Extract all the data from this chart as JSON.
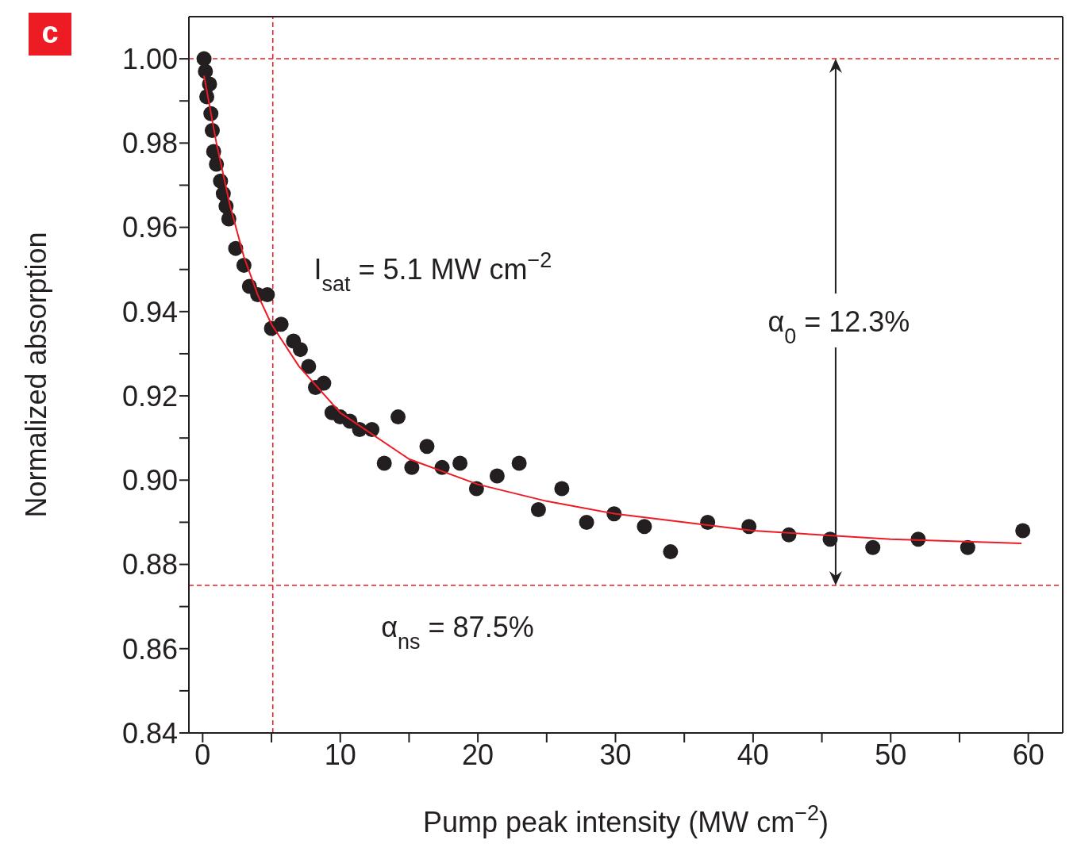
{
  "chart_data": {
    "type": "scatter",
    "xlabel": "Pump peak intensity (MW cm$^{−2}$)",
    "ylabel": "Normalized absorption",
    "xlim": [
      -1,
      62.5
    ],
    "ylim": [
      0.84,
      1.01
    ],
    "xticks": [
      0,
      {
        "value": 5,
        "label": null
      },
      10,
      {
        "value": 15,
        "label": null
      },
      20,
      {
        "value": 25,
        "label": null
      },
      30,
      {
        "value": 35,
        "label": null
      },
      40,
      {
        "value": 45,
        "label": null
      },
      50,
      {
        "value": 55,
        "label": null
      },
      60
    ],
    "yticks": [
      0.84,
      {
        "value": 0.85,
        "label": null
      },
      0.86,
      {
        "value": 0.87,
        "label": null
      },
      0.88,
      {
        "value": 0.89,
        "label": null
      },
      {
        "value": 0.9,
        "label": "0.90"
      },
      {
        "value": 0.91,
        "label": null
      },
      0.92,
      {
        "value": 0.93,
        "label": null
      },
      0.94,
      {
        "value": 0.95,
        "label": null
      },
      0.96,
      {
        "value": 0.97,
        "label": null
      },
      0.98,
      {
        "value": 0.99,
        "label": null
      },
      {
        "value": 1,
        "label": "1.00"
      }
    ],
    "marker": "circle",
    "series": [
      {
        "color": "#231f20",
        "x": [
          0.1,
          0.2,
          0.5,
          0.3,
          0.6,
          0.7,
          0.8,
          1.0,
          1.3,
          1.5,
          1.7,
          1.9,
          2.4,
          3.0,
          3.4,
          4.0,
          4.7,
          5.0,
          5.7,
          6.6,
          7.1,
          7.7,
          8.2,
          8.8,
          9.4,
          10.0,
          10.7,
          11.4,
          12.3,
          13.2,
          14.2,
          15.2,
          16.3,
          17.4,
          18.7,
          19.9,
          21.4,
          23.0,
          24.4,
          26.1,
          27.9,
          29.9,
          32.1,
          34.0,
          36.7,
          39.7,
          42.6,
          45.6,
          48.7,
          52.0,
          55.6,
          59.6
        ],
        "values": [
          1.0,
          0.997,
          0.994,
          0.991,
          0.987,
          0.983,
          0.978,
          0.975,
          0.971,
          0.968,
          0.965,
          0.962,
          0.955,
          0.951,
          0.946,
          0.944,
          0.944,
          0.936,
          0.937,
          0.933,
          0.931,
          0.927,
          0.922,
          0.923,
          0.916,
          0.915,
          0.914,
          0.912,
          0.912,
          0.904,
          0.915,
          0.903,
          0.908,
          0.903,
          0.904,
          0.898,
          0.901,
          0.904,
          0.893,
          0.898,
          0.89,
          0.892,
          0.889,
          0.883,
          0.89,
          0.889,
          0.887,
          0.886,
          0.884,
          0.886,
          0.884,
          0.888
        ]
      },
      {
        "type": "line",
        "color": "#ed1c24",
        "marker": "none",
        "line_style": "solid",
        "x": [
          0.1,
          1,
          2,
          3,
          4,
          5,
          7,
          10,
          15,
          20,
          25,
          30,
          40,
          50,
          59.5
        ],
        "values": [
          0.996,
          0.98,
          0.965,
          0.953,
          0.944,
          0.937,
          0.927,
          0.916,
          0.905,
          0.899,
          0.895,
          0.892,
          0.888,
          0.886,
          0.885
        ]
      }
    ],
    "ref_lines": [
      {
        "axis": "y",
        "value": 1.0,
        "color": "#ed1c24",
        "line_style": "dashed"
      },
      {
        "axis": "y",
        "value": 0.875,
        "color": "#ed1c24",
        "line_style": "dashed"
      },
      {
        "axis": "x",
        "value": 5.1,
        "color": "#ed1c24",
        "line_style": "dashed"
      }
    ],
    "annotations": [
      "c",
      "I$_{sat}$ = 5.1 MW cm$^{−2}$",
      {
        "text": "α$_{0}$ = 12.3%",
        "x": 46,
        "y": 0.875
      },
      "α$_{ns}$ = 87.5%"
    ]
  }
}
